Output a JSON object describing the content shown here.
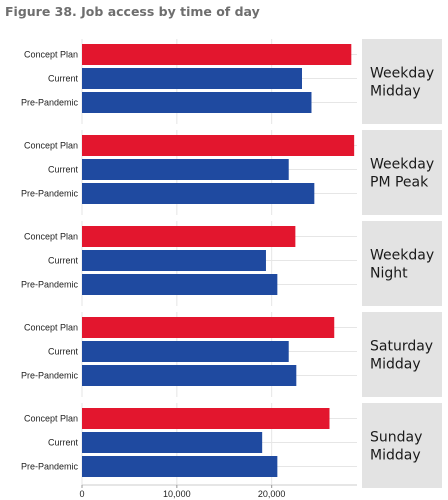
{
  "figure_title": "Figure 38. Job access by time of day",
  "chart_data": {
    "type": "bar",
    "orientation": "horizontal",
    "title": "Figure 38. Job access by time of day",
    "xlabel": "",
    "ylabel": "",
    "xlim": [
      0,
      29000
    ],
    "x_ticks": [
      0,
      10000,
      20000
    ],
    "x_tick_labels": [
      "0",
      "10,000",
      "20,000"
    ],
    "grid": true,
    "categories": [
      "Concept Plan",
      "Current",
      "Pre-Pandemic"
    ],
    "category_colors": [
      "#e3162e",
      "#1f4aa0",
      "#1f4aa0"
    ],
    "panel_label_background": "#e3e3e3",
    "panels": [
      {
        "label": [
          "Weekday",
          "Midday"
        ],
        "values": [
          28400,
          23200,
          24200
        ]
      },
      {
        "label": [
          "Weekday",
          "PM Peak"
        ],
        "values": [
          28700,
          21800,
          24500
        ]
      },
      {
        "label": [
          "Weekday",
          "Night"
        ],
        "values": [
          22500,
          19400,
          20600
        ]
      },
      {
        "label": [
          "Saturday",
          "Midday"
        ],
        "values": [
          26600,
          21800,
          22600
        ]
      },
      {
        "label": [
          "Sunday",
          "Midday"
        ],
        "values": [
          26100,
          19000,
          20600
        ]
      }
    ]
  }
}
